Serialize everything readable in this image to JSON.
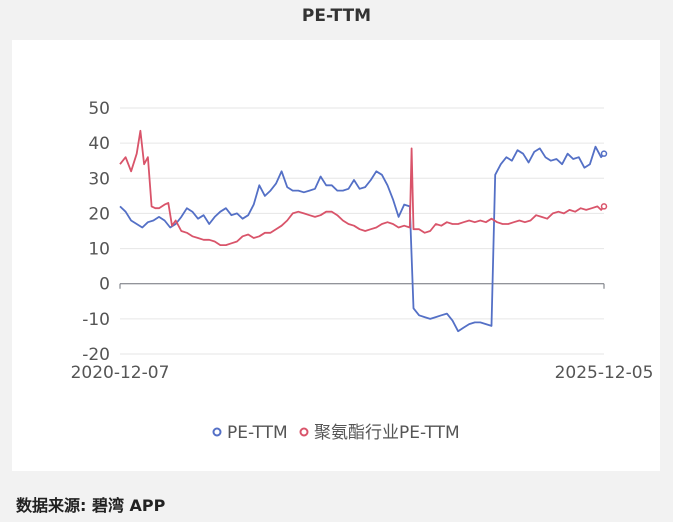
{
  "page": {
    "title": "PE-TTM",
    "source": "数据来源: 碧湾 APP"
  },
  "colors": {
    "pe": "#5470c6",
    "industry": "#d9546a",
    "grid": "#e6e6e6",
    "axis": "#555555"
  },
  "chart_data": {
    "type": "line",
    "title": "PE-TTM",
    "x_labels": [
      "2020-12-07",
      "2025-12-05"
    ],
    "x_range": [
      "2020-12-07",
      "2025-12-05"
    ],
    "ylim": [
      -20,
      50
    ],
    "yticks": [
      -20,
      -10,
      0,
      10,
      20,
      30,
      40,
      50
    ],
    "grid": true,
    "legend_position": "bottom-center",
    "series": [
      {
        "name": "PE-TTM",
        "points": [
          [
            "2020-12-07",
            22
          ],
          [
            "2020-12-28",
            20.5
          ],
          [
            "2021-01-18",
            18
          ],
          [
            "2021-02-08",
            17
          ],
          [
            "2021-03-01",
            16
          ],
          [
            "2021-03-22",
            17.5
          ],
          [
            "2021-04-12",
            18
          ],
          [
            "2021-05-03",
            19
          ],
          [
            "2021-05-24",
            18
          ],
          [
            "2021-06-14",
            16
          ],
          [
            "2021-07-05",
            17
          ],
          [
            "2021-07-26",
            19
          ],
          [
            "2021-08-16",
            21.5
          ],
          [
            "2021-09-06",
            20.5
          ],
          [
            "2021-09-27",
            18.5
          ],
          [
            "2021-10-18",
            19.5
          ],
          [
            "2021-11-08",
            17
          ],
          [
            "2021-11-29",
            19
          ],
          [
            "2021-12-20",
            20.5
          ],
          [
            "2022-01-10",
            21.5
          ],
          [
            "2022-01-31",
            19.5
          ],
          [
            "2022-02-21",
            20
          ],
          [
            "2022-03-14",
            18.5
          ],
          [
            "2022-04-04",
            19.5
          ],
          [
            "2022-04-25",
            22.5
          ],
          [
            "2022-05-16",
            28
          ],
          [
            "2022-06-06",
            25
          ],
          [
            "2022-06-27",
            26.5
          ],
          [
            "2022-07-18",
            28.5
          ],
          [
            "2022-08-08",
            32
          ],
          [
            "2022-08-29",
            27.5
          ],
          [
            "2022-09-19",
            26.5
          ],
          [
            "2022-10-10",
            26.5
          ],
          [
            "2022-10-31",
            26
          ],
          [
            "2022-11-21",
            26.5
          ],
          [
            "2022-12-12",
            27
          ],
          [
            "2023-01-02",
            30.5
          ],
          [
            "2023-01-23",
            28
          ],
          [
            "2023-02-13",
            28
          ],
          [
            "2023-03-06",
            26.5
          ],
          [
            "2023-03-27",
            26.5
          ],
          [
            "2023-04-17",
            27
          ],
          [
            "2023-05-08",
            29.5
          ],
          [
            "2023-05-29",
            27
          ],
          [
            "2023-06-19",
            27.5
          ],
          [
            "2023-07-10",
            29.5
          ],
          [
            "2023-07-31",
            32
          ],
          [
            "2023-08-21",
            31
          ],
          [
            "2023-09-11",
            28
          ],
          [
            "2023-10-02",
            24
          ],
          [
            "2023-10-23",
            19
          ],
          [
            "2023-11-13",
            22.5
          ],
          [
            "2023-12-04",
            22
          ],
          [
            "2023-12-18",
            -7
          ],
          [
            "2024-01-08",
            -9
          ],
          [
            "2024-01-29",
            -9.5
          ],
          [
            "2024-02-19",
            -10
          ],
          [
            "2024-03-11",
            -9.5
          ],
          [
            "2024-04-01",
            -9
          ],
          [
            "2024-04-22",
            -8.5
          ],
          [
            "2024-05-13",
            -10.5
          ],
          [
            "2024-06-03",
            -13.5
          ],
          [
            "2024-06-24",
            -12.5
          ],
          [
            "2024-07-15",
            -11.5
          ],
          [
            "2024-08-05",
            -11
          ],
          [
            "2024-08-26",
            -11
          ],
          [
            "2024-09-16",
            -11.5
          ],
          [
            "2024-10-07",
            -12
          ],
          [
            "2024-10-21",
            31
          ],
          [
            "2024-11-11",
            34
          ],
          [
            "2024-12-02",
            36
          ],
          [
            "2024-12-23",
            35
          ],
          [
            "2025-01-13",
            38
          ],
          [
            "2025-02-03",
            37
          ],
          [
            "2025-02-24",
            34.5
          ],
          [
            "2025-03-17",
            37.5
          ],
          [
            "2025-04-07",
            38.5
          ],
          [
            "2025-04-28",
            36
          ],
          [
            "2025-05-19",
            35
          ],
          [
            "2025-06-09",
            35.5
          ],
          [
            "2025-06-30",
            34
          ],
          [
            "2025-07-21",
            37
          ],
          [
            "2025-08-11",
            35.5
          ],
          [
            "2025-09-01",
            36
          ],
          [
            "2025-09-22",
            33
          ],
          [
            "2025-10-13",
            34
          ],
          [
            "2025-11-03",
            39
          ],
          [
            "2025-11-24",
            36
          ],
          [
            "2025-12-05",
            37
          ]
        ]
      },
      {
        "name": "聚氨酯行业PE-TTM",
        "points": [
          [
            "2020-12-07",
            34
          ],
          [
            "2020-12-28",
            36
          ],
          [
            "2021-01-18",
            32
          ],
          [
            "2021-02-08",
            37
          ],
          [
            "2021-02-22",
            43.5
          ],
          [
            "2021-03-08",
            34
          ],
          [
            "2021-03-22",
            36
          ],
          [
            "2021-04-05",
            22
          ],
          [
            "2021-04-19",
            21.5
          ],
          [
            "2021-05-03",
            21.5
          ],
          [
            "2021-05-24",
            22.5
          ],
          [
            "2021-06-07",
            23
          ],
          [
            "2021-06-21",
            16.5
          ],
          [
            "2021-07-05",
            18
          ],
          [
            "2021-07-26",
            15
          ],
          [
            "2021-08-16",
            14.5
          ],
          [
            "2021-09-06",
            13.5
          ],
          [
            "2021-09-27",
            13
          ],
          [
            "2021-10-18",
            12.5
          ],
          [
            "2021-11-08",
            12.5
          ],
          [
            "2021-11-29",
            12
          ],
          [
            "2021-12-20",
            11
          ],
          [
            "2022-01-10",
            11
          ],
          [
            "2022-01-31",
            11.5
          ],
          [
            "2022-02-21",
            12
          ],
          [
            "2022-03-14",
            13.5
          ],
          [
            "2022-04-04",
            14
          ],
          [
            "2022-04-25",
            13
          ],
          [
            "2022-05-16",
            13.5
          ],
          [
            "2022-06-06",
            14.5
          ],
          [
            "2022-06-27",
            14.5
          ],
          [
            "2022-07-18",
            15.5
          ],
          [
            "2022-08-08",
            16.5
          ],
          [
            "2022-08-29",
            18
          ],
          [
            "2022-09-19",
            20
          ],
          [
            "2022-10-10",
            20.5
          ],
          [
            "2022-10-31",
            20
          ],
          [
            "2022-11-21",
            19.5
          ],
          [
            "2022-12-12",
            19
          ],
          [
            "2023-01-02",
            19.5
          ],
          [
            "2023-01-23",
            20.5
          ],
          [
            "2023-02-13",
            20.5
          ],
          [
            "2023-03-06",
            19.5
          ],
          [
            "2023-03-27",
            18
          ],
          [
            "2023-04-17",
            17
          ],
          [
            "2023-05-08",
            16.5
          ],
          [
            "2023-05-29",
            15.5
          ],
          [
            "2023-06-19",
            15
          ],
          [
            "2023-07-10",
            15.5
          ],
          [
            "2023-07-31",
            16
          ],
          [
            "2023-08-21",
            17
          ],
          [
            "2023-09-11",
            17.5
          ],
          [
            "2023-10-02",
            17
          ],
          [
            "2023-10-23",
            16
          ],
          [
            "2023-11-13",
            16.5
          ],
          [
            "2023-12-04",
            16
          ],
          [
            "2023-12-11",
            38.5
          ],
          [
            "2023-12-18",
            15.5
          ],
          [
            "2024-01-08",
            15.5
          ],
          [
            "2024-01-29",
            14.5
          ],
          [
            "2024-02-19",
            15
          ],
          [
            "2024-03-11",
            17
          ],
          [
            "2024-04-01",
            16.5
          ],
          [
            "2024-04-22",
            17.5
          ],
          [
            "2024-05-13",
            17
          ],
          [
            "2024-06-03",
            17
          ],
          [
            "2024-06-24",
            17.5
          ],
          [
            "2024-07-15",
            18
          ],
          [
            "2024-08-05",
            17.5
          ],
          [
            "2024-08-26",
            18
          ],
          [
            "2024-09-16",
            17.5
          ],
          [
            "2024-10-07",
            18.5
          ],
          [
            "2024-10-28",
            17.5
          ],
          [
            "2024-11-18",
            17
          ],
          [
            "2024-12-09",
            17
          ],
          [
            "2024-12-30",
            17.5
          ],
          [
            "2025-01-20",
            18
          ],
          [
            "2025-02-10",
            17.5
          ],
          [
            "2025-03-03",
            18
          ],
          [
            "2025-03-24",
            19.5
          ],
          [
            "2025-04-14",
            19
          ],
          [
            "2025-05-05",
            18.5
          ],
          [
            "2025-05-26",
            20
          ],
          [
            "2025-06-16",
            20.5
          ],
          [
            "2025-07-07",
            20
          ],
          [
            "2025-07-28",
            21
          ],
          [
            "2025-08-18",
            20.5
          ],
          [
            "2025-09-08",
            21.5
          ],
          [
            "2025-09-29",
            21
          ],
          [
            "2025-10-20",
            21.5
          ],
          [
            "2025-11-10",
            22
          ],
          [
            "2025-11-24",
            21
          ],
          [
            "2025-12-05",
            22
          ]
        ]
      }
    ]
  }
}
